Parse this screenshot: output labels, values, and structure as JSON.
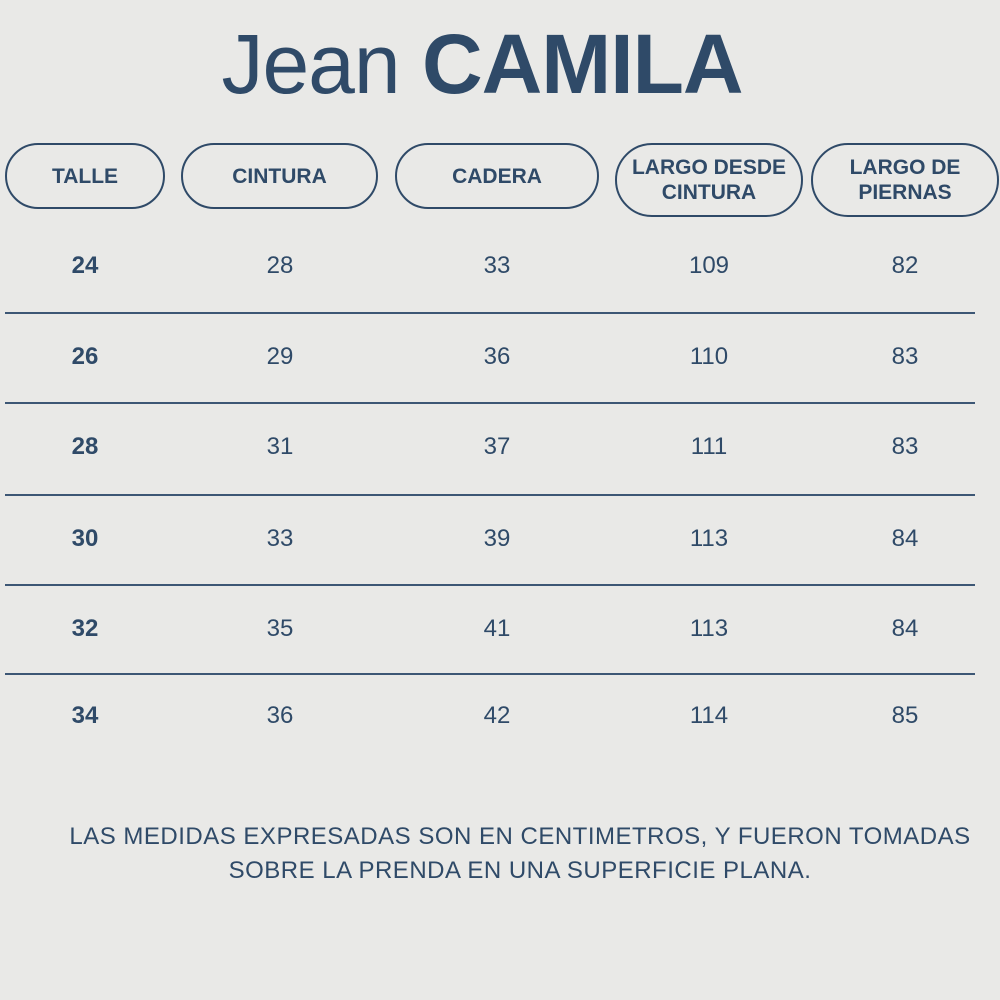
{
  "title": {
    "light": "Jean",
    "bold": "CAMILA"
  },
  "table": {
    "headers": [
      {
        "key": "talle",
        "lines": [
          "TALLE"
        ]
      },
      {
        "key": "cintura",
        "lines": [
          "CINTURA"
        ]
      },
      {
        "key": "cadera",
        "lines": [
          "CADERA"
        ]
      },
      {
        "key": "largo-desde-cintura",
        "lines": [
          "LARGO DESDE",
          "CINTURA"
        ]
      },
      {
        "key": "largo-de-piernas",
        "lines": [
          "LARGO DE",
          "PIERNAS"
        ]
      }
    ],
    "rows": [
      [
        "24",
        "28",
        "33",
        "109",
        "82"
      ],
      [
        "26",
        "29",
        "36",
        "110",
        "83"
      ],
      [
        "28",
        "31",
        "37",
        "111",
        "83"
      ],
      [
        "30",
        "33",
        "39",
        "113",
        "84"
      ],
      [
        "32",
        "35",
        "41",
        "113",
        "84"
      ],
      [
        "34",
        "36",
        "42",
        "114",
        "85"
      ]
    ]
  },
  "note": {
    "line1": "LAS MEDIDAS EXPRESADAS SON EN CENTIMETROS, Y FUERON TOMADAS",
    "line2": "SOBRE LA PRENDA EN UNA SUPERFICIE PLANA."
  }
}
